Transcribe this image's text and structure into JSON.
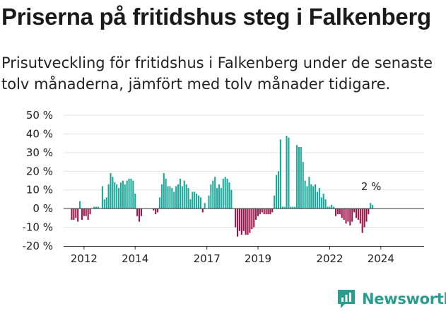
{
  "header": {
    "title": "Priserna på fritidshus steg i Falkenberg",
    "subtitle": "Prisutveckling för fritidshus i Falkenberg under de senaste tolv månaderna, jämfört med tolv månader tidigare."
  },
  "brand": {
    "name": "Newsworthy",
    "logo_icon": "bar-chart-logo-icon"
  },
  "chart_data": {
    "type": "bar",
    "title": "",
    "xlabel": "",
    "ylabel": "",
    "ylim": [
      -20,
      50
    ],
    "y_ticks": [
      -20,
      -10,
      0,
      10,
      20,
      30,
      40,
      50
    ],
    "y_tick_labels": [
      "-20 %",
      "-10 %",
      "0 %",
      "10 %",
      "20 %",
      "30 %",
      "40 %",
      "50 %"
    ],
    "x_tick_labels": [
      {
        "label": "2012",
        "at": 2011.96
      },
      {
        "label": "2014",
        "at": 2014.04
      },
      {
        "label": "2017",
        "at": 2016.96
      },
      {
        "label": "2019",
        "at": 2019.04
      },
      {
        "label": "2022",
        "at": 2021.96
      },
      {
        "label": "2024",
        "at": 2024.04
      }
    ],
    "x_range": [
      2011.13,
      2025.8
    ],
    "series_start": 2011.46,
    "step": 0.0833,
    "positive_color": "#1aa89a",
    "negative_color": "#99154a",
    "grid": true,
    "annotation": {
      "text": "2 %",
      "value": 2
    },
    "values": [
      -6,
      -6,
      -5,
      -7,
      4,
      -6,
      -4,
      -4,
      -6,
      -3,
      null,
      1,
      1,
      1,
      null,
      12,
      5,
      6,
      13,
      19,
      17,
      14,
      13,
      11,
      14,
      15,
      13,
      15,
      16,
      16,
      15,
      8,
      -4,
      -7,
      -4,
      null,
      null,
      null,
      null,
      null,
      -1,
      -3,
      -2,
      6,
      13,
      19,
      16,
      12,
      12,
      11,
      9,
      12,
      13,
      16,
      12,
      15,
      13,
      11,
      5,
      9,
      9,
      8,
      7,
      6,
      -2,
      3,
      null,
      7,
      13,
      15,
      17,
      11,
      13,
      11,
      16,
      17,
      16,
      14,
      10,
      null,
      -10,
      -15,
      -12,
      -14,
      -12,
      -14,
      -14,
      -13,
      -11,
      -10,
      -6,
      -4,
      -3,
      -2,
      -3,
      -3,
      -3,
      -3,
      -2,
      7,
      18,
      20,
      37,
      1,
      1,
      39,
      38,
      1,
      1,
      1,
      34,
      33,
      33,
      25,
      15,
      12,
      17,
      13,
      12,
      13,
      9,
      11,
      6,
      8,
      5,
      1,
      1,
      2,
      1,
      -4,
      -3,
      -3,
      -5,
      -6,
      -8,
      -7,
      -9,
      -7,
      -2,
      -5,
      -6,
      -8,
      -13,
      -10,
      -7,
      -3,
      3,
      2
    ]
  }
}
